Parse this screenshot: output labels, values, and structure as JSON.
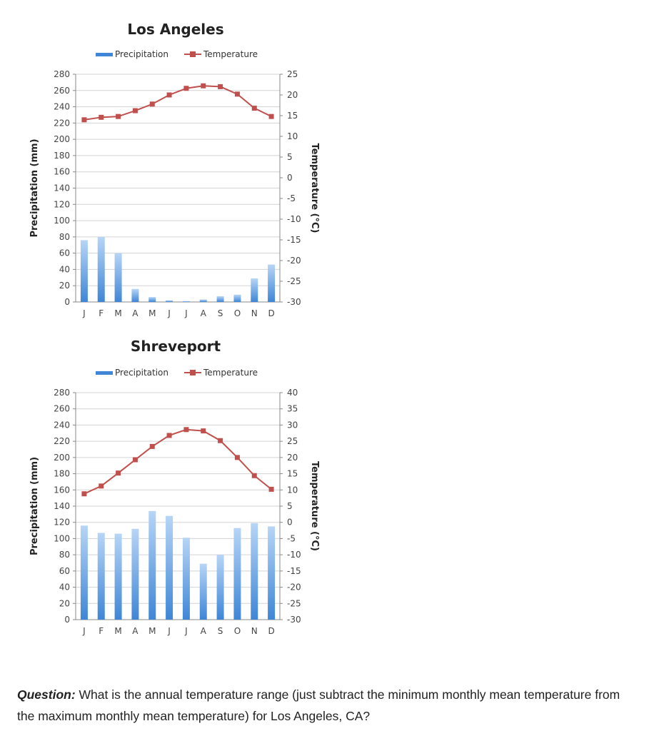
{
  "chart_data": [
    {
      "type": "bar+line",
      "title": "Los Angeles",
      "categories": [
        "J",
        "F",
        "M",
        "A",
        "M",
        "J",
        "J",
        "A",
        "S",
        "O",
        "N",
        "D"
      ],
      "legend": {
        "placement": "top",
        "items": [
          "Precipitation",
          "Temperature"
        ]
      },
      "series": [
        {
          "name": "Precipitation",
          "type": "bar",
          "axis": "left",
          "values": [
            76,
            80,
            60,
            16,
            6,
            2,
            1,
            3,
            7,
            9,
            29,
            46
          ]
        },
        {
          "name": "Temperature",
          "type": "line",
          "axis": "right",
          "values": [
            14,
            14.6,
            14.8,
            16.2,
            17.8,
            20,
            21.6,
            22.2,
            22,
            20.2,
            16.8,
            14.8
          ]
        }
      ],
      "ylabel": "Precipitation (mm)",
      "ylim": [
        0,
        280
      ],
      "yticks": [
        0,
        20,
        40,
        60,
        80,
        100,
        120,
        140,
        160,
        180,
        200,
        220,
        240,
        260,
        280
      ],
      "y2label": "Temperature (°C)",
      "y2lim": [
        -30,
        25
      ],
      "y2ticks": [
        -30,
        -25,
        -20,
        -15,
        -10,
        -5,
        0,
        5,
        10,
        15,
        20,
        25
      ],
      "grid": true
    },
    {
      "type": "bar+line",
      "title": "Shreveport",
      "categories": [
        "J",
        "F",
        "M",
        "A",
        "M",
        "J",
        "J",
        "A",
        "S",
        "O",
        "N",
        "D"
      ],
      "legend": {
        "placement": "top",
        "items": [
          "Precipitation",
          "Temperature"
        ]
      },
      "series": [
        {
          "name": "Precipitation",
          "type": "bar",
          "axis": "left",
          "values": [
            116,
            107,
            106,
            112,
            134,
            128,
            101,
            69,
            80,
            113,
            119,
            115
          ]
        },
        {
          "name": "Temperature",
          "type": "line",
          "axis": "right",
          "values": [
            8.8,
            11.2,
            15.2,
            19.3,
            23.4,
            26.8,
            28.6,
            28.2,
            25.2,
            20,
            14.4,
            10.2
          ]
        }
      ],
      "ylabel": "Precipitation (mm)",
      "ylim": [
        0,
        280
      ],
      "yticks": [
        0,
        20,
        40,
        60,
        80,
        100,
        120,
        140,
        160,
        180,
        200,
        220,
        240,
        260,
        280
      ],
      "y2label": "Temperature (°C)",
      "y2lim": [
        -30,
        40
      ],
      "y2ticks": [
        -30,
        -25,
        -20,
        -15,
        -10,
        -5,
        0,
        5,
        10,
        15,
        20,
        25,
        30,
        35,
        40
      ],
      "grid": true
    }
  ],
  "colors": {
    "bar_top": "#b7d5f6",
    "bar_bottom": "#3f86d6",
    "line": "#c0504d",
    "grid": "#d3d3d3",
    "axis": "#888888"
  },
  "question": {
    "label": "Question:",
    "text": " What is the annual temperature range (just subtract the minimum monthly mean temperature from the maximum monthly mean temperature) for Los Angeles, CA?"
  }
}
